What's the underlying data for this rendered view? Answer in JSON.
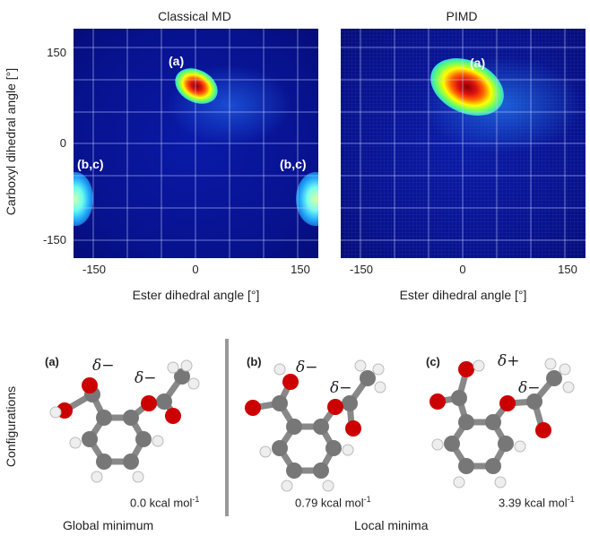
{
  "panels": [
    {
      "title": "Classical MD",
      "peak_label": "(a)",
      "edge_label_left": "(b,c)",
      "edge_label_right": "(b,c)"
    },
    {
      "title": "PIMD",
      "peak_label": "(a)"
    }
  ],
  "axes": {
    "xlabel": "Ester dihedral angle [°]",
    "ylabel": "Carboxyl dihedral angle [°]",
    "xticks": [
      "-150",
      "0",
      "150"
    ],
    "yticks": [
      "150",
      "0",
      "-150"
    ]
  },
  "chart_data": [
    {
      "type": "heatmap",
      "title": "Classical MD",
      "xlabel": "Ester dihedral angle [°]",
      "ylabel": "Carboxyl dihedral angle [°]",
      "xlim": [
        -180,
        180
      ],
      "ylim": [
        -180,
        180
      ],
      "colormap": "jet",
      "peaks": [
        {
          "label": "(a)",
          "x": -3,
          "y": 78
        },
        {
          "label": "(b,c)",
          "x": -178,
          "y": -75
        },
        {
          "label": "(b,c)",
          "x": 178,
          "y": -75
        }
      ]
    },
    {
      "type": "heatmap",
      "title": "PIMD",
      "xlabel": "Ester dihedral angle [°]",
      "ylabel": "",
      "xlim": [
        -180,
        180
      ],
      "ylim": [
        -180,
        180
      ],
      "colormap": "jet",
      "peaks": [
        {
          "label": "(a)",
          "x": 0,
          "y": 78
        }
      ]
    }
  ],
  "configurations": {
    "ylabel": "Configurations",
    "items": [
      {
        "label": "(a)",
        "energy": "0.0 kcal mol",
        "energy_sup": "-1",
        "delta1": "δ−",
        "delta2": "δ−"
      },
      {
        "label": "(b)",
        "energy": "0.79 kcal mol",
        "energy_sup": "-1",
        "delta1": "δ−",
        "delta2": "δ−"
      },
      {
        "label": "(c)",
        "energy": "3.39 kcal mol",
        "energy_sup": "-1",
        "delta1": "δ+",
        "delta2": "δ−"
      }
    ],
    "global_caption": "Global minimum",
    "local_caption": "Local minima"
  }
}
